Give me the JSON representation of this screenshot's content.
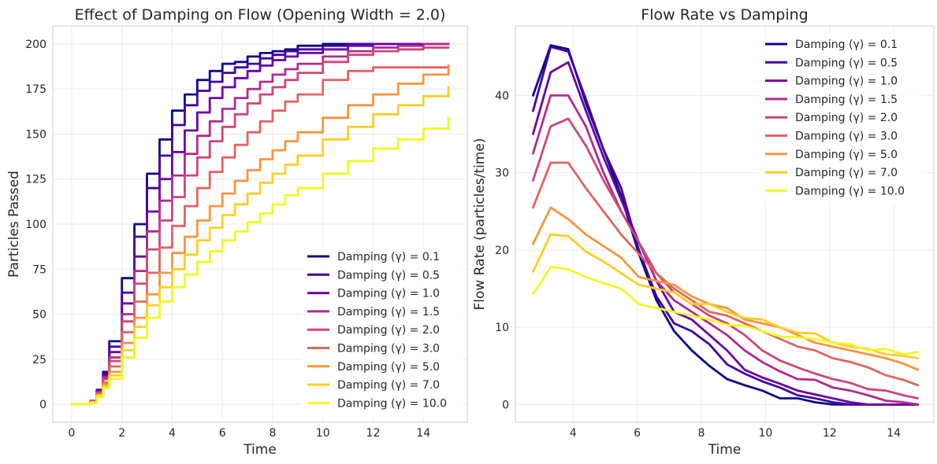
{
  "colors": {
    "background": "#ffffff",
    "spine": "#cccccc",
    "grid": "#ebebeb",
    "palette": "plasma",
    "series_colors": [
      "#0d0887",
      "#41049d",
      "#6a00a8",
      "#b12a90",
      "#cc4778",
      "#e16462",
      "#f89540",
      "#fcce25",
      "#f0f921"
    ]
  },
  "chart_data": [
    {
      "type": "line",
      "title": "Effect of Damping on Flow (Opening Width = 2.0)",
      "xlabel": "Time",
      "ylabel": "Particles Passed",
      "xlim": [
        -0.75,
        15.75
      ],
      "ylim": [
        -10,
        210
      ],
      "xticks": [
        0,
        2,
        4,
        6,
        8,
        10,
        12,
        14
      ],
      "yticks": [
        0,
        25,
        50,
        75,
        100,
        125,
        150,
        175,
        200
      ],
      "grid": true,
      "legend_position": "lower right",
      "series": [
        {
          "name": "Damping (γ) = 0.1",
          "x": [
            0,
            0.5,
            0.75,
            1,
            1.25,
            1.5,
            2,
            2.5,
            3,
            3.5,
            4,
            4.5,
            5,
            5.5,
            6,
            6.5,
            7,
            7.5,
            8,
            8.5,
            9,
            10,
            11,
            12,
            13,
            14,
            15
          ],
          "y": [
            0,
            0,
            2,
            8,
            18,
            35,
            70,
            100,
            128,
            147,
            163,
            172,
            180,
            185,
            189,
            190,
            193,
            195,
            196,
            197,
            199,
            200,
            200,
            200,
            200,
            200,
            200
          ]
        },
        {
          "name": "Damping (γ) = 0.5",
          "x": [
            0,
            0.5,
            0.75,
            1,
            1.25,
            1.5,
            2,
            2.5,
            3,
            3.5,
            4,
            4.5,
            5,
            5.5,
            6,
            6.5,
            7,
            7.5,
            8,
            8.5,
            9,
            10,
            11,
            12,
            13,
            14,
            15
          ],
          "y": [
            0,
            0,
            2,
            8,
            17,
            32,
            62,
            93,
            120,
            138,
            155,
            166,
            174,
            179,
            184,
            187,
            189,
            192,
            194,
            196,
            197,
            199,
            200,
            200,
            200,
            200,
            200
          ]
        },
        {
          "name": "Damping (γ) = 1.0",
          "x": [
            0,
            0.5,
            0.75,
            1,
            1.25,
            1.5,
            2,
            2.5,
            3,
            3.5,
            4,
            4.5,
            5,
            5.5,
            6,
            6.5,
            7,
            7.5,
            8,
            8.5,
            9,
            10,
            11,
            12,
            13,
            14,
            15
          ],
          "y": [
            0,
            0,
            2,
            7,
            16,
            29,
            56,
            82,
            107,
            125,
            140,
            152,
            162,
            170,
            176,
            181,
            185,
            188,
            191,
            193,
            195,
            197,
            199,
            200,
            200,
            200,
            200
          ]
        },
        {
          "name": "Damping (γ) = 1.5",
          "x": [
            0,
            0.5,
            0.75,
            1,
            1.25,
            1.5,
            2,
            2.5,
            3,
            3.5,
            4,
            4.5,
            5,
            5.5,
            6,
            6.5,
            7,
            7.5,
            8,
            8.5,
            9,
            10,
            11,
            12,
            13,
            14,
            15
          ],
          "y": [
            0,
            0,
            2,
            7,
            15,
            26,
            50,
            74,
            96,
            113,
            127,
            139,
            149,
            157,
            164,
            170,
            175,
            179,
            183,
            186,
            189,
            193,
            196,
            198,
            199,
            200,
            200
          ]
        },
        {
          "name": "Damping (γ) = 2.0",
          "x": [
            0,
            0.5,
            0.75,
            1,
            1.25,
            1.5,
            2,
            2.5,
            3,
            3.5,
            4,
            4.5,
            5,
            5.5,
            6,
            6.5,
            7,
            7.5,
            8,
            8.5,
            9,
            10,
            11,
            12,
            13,
            14,
            15
          ],
          "y": [
            0,
            0,
            2,
            6,
            14,
            24,
            46,
            67,
            86,
            102,
            115,
            127,
            137,
            146,
            154,
            161,
            167,
            172,
            176,
            180,
            184,
            190,
            194,
            196,
            197,
            198,
            198
          ]
        },
        {
          "name": "Damping (γ) = 3.0",
          "x": [
            0,
            0.5,
            0.75,
            1,
            1.25,
            1.5,
            2,
            2.5,
            3,
            3.5,
            4,
            4.5,
            5,
            5.5,
            6,
            6.5,
            7,
            7.5,
            8,
            8.5,
            9,
            10,
            11,
            12,
            13,
            14,
            15
          ],
          "y": [
            0,
            0,
            2,
            6,
            12,
            21,
            40,
            57,
            73,
            87,
            99,
            110,
            120,
            129,
            137,
            144,
            151,
            157,
            163,
            168,
            172,
            180,
            185,
            187,
            187,
            187,
            188
          ]
        },
        {
          "name": "Damping (γ) = 5.0",
          "x": [
            0,
            0.5,
            0.75,
            1,
            1.25,
            1.5,
            2,
            2.5,
            3,
            3.5,
            4,
            4.5,
            5,
            5.5,
            6,
            6.5,
            7,
            7.5,
            8,
            8.5,
            9,
            10,
            11,
            12,
            13,
            14,
            15
          ],
          "y": [
            0,
            0,
            1,
            5,
            11,
            18,
            34,
            48,
            61,
            73,
            84,
            93,
            102,
            110,
            117,
            124,
            130,
            136,
            141,
            146,
            151,
            159,
            166,
            172,
            178,
            183,
            188
          ]
        },
        {
          "name": "Damping (γ) = 7.0",
          "x": [
            0,
            0.5,
            0.75,
            1,
            1.25,
            1.5,
            2,
            2.5,
            3,
            3.5,
            4,
            4.5,
            5,
            5.5,
            6,
            6.5,
            7,
            7.5,
            8,
            8.5,
            9,
            10,
            11,
            12,
            13,
            14,
            15
          ],
          "y": [
            0,
            0,
            1,
            5,
            10,
            16,
            30,
            43,
            55,
            65,
            75,
            83,
            91,
            98,
            105,
            111,
            117,
            123,
            128,
            133,
            138,
            147,
            154,
            161,
            166,
            171,
            176
          ]
        },
        {
          "name": "Damping (γ) = 10.0",
          "x": [
            0,
            0.5,
            0.75,
            1,
            1.25,
            1.5,
            2,
            2.5,
            3,
            3.5,
            4,
            4.5,
            5,
            5.5,
            6,
            6.5,
            7,
            7.5,
            8,
            8.5,
            9,
            10,
            11,
            12,
            13,
            14,
            15
          ],
          "y": [
            0,
            0,
            1,
            4,
            9,
            14,
            26,
            37,
            48,
            57,
            65,
            72,
            79,
            85,
            91,
            96,
            101,
            106,
            111,
            116,
            120,
            128,
            135,
            142,
            147,
            153,
            159
          ]
        }
      ]
    },
    {
      "type": "line",
      "title": "Flow Rate vs Damping",
      "xlabel": "Time",
      "ylabel": "Flow Rate (particles/time)",
      "xlim": [
        2.2,
        15.25
      ],
      "ylim": [
        -2.3,
        49
      ],
      "xticks": [
        4,
        6,
        8,
        10,
        12,
        14
      ],
      "yticks": [
        0,
        10,
        20,
        30,
        40
      ],
      "grid": true,
      "legend_position": "upper right",
      "series": [
        {
          "name": "Damping (γ) = 0.1",
          "x": [
            2.75,
            3.3,
            3.85,
            4.4,
            4.95,
            5.5,
            6.05,
            6.6,
            7.15,
            7.7,
            8.25,
            8.8,
            9.35,
            9.9,
            10.45,
            11.0,
            11.55,
            12.1,
            12.65,
            13.2,
            13.75,
            14.3,
            14.75
          ],
          "y": [
            40,
            46.5,
            46,
            39,
            33,
            27,
            19.5,
            13.5,
            9.5,
            7,
            5,
            3.3,
            2.5,
            1.8,
            0.8,
            0.8,
            0.3,
            0,
            0,
            0,
            0,
            0,
            0
          ]
        },
        {
          "name": "Damping (γ) = 0.5",
          "x": [
            2.75,
            3.3,
            3.85,
            4.4,
            4.95,
            5.5,
            6.05,
            6.6,
            7.15,
            7.7,
            8.25,
            8.8,
            9.35,
            9.9,
            10.45,
            11.0,
            11.55,
            12.1,
            12.65,
            13.2,
            13.75,
            14.3,
            14.75
          ],
          "y": [
            38,
            46.3,
            45.7,
            39.5,
            33,
            28,
            20,
            14,
            10.5,
            9.5,
            7.8,
            5.2,
            4,
            3,
            2.2,
            1.2,
            0.8,
            0.3,
            0,
            0,
            0,
            0,
            0
          ]
        },
        {
          "name": "Damping (γ) = 1.0",
          "x": [
            2.75,
            3.3,
            3.85,
            4.4,
            4.95,
            5.5,
            6.05,
            6.6,
            7.15,
            7.7,
            8.25,
            8.8,
            9.35,
            9.9,
            10.45,
            11.0,
            11.55,
            12.1,
            12.65,
            13.2,
            13.75,
            14.3,
            14.75
          ],
          "y": [
            35,
            43,
            44.3,
            38,
            32,
            26.5,
            21,
            16,
            12,
            11,
            9,
            7,
            4.5,
            3.5,
            2.7,
            1.8,
            1.3,
            0.8,
            0.3,
            0,
            0,
            0,
            0
          ]
        },
        {
          "name": "Damping (γ) = 1.5",
          "x": [
            2.75,
            3.3,
            3.85,
            4.4,
            4.95,
            5.5,
            6.05,
            6.6,
            7.15,
            7.7,
            8.25,
            8.8,
            9.35,
            9.9,
            10.45,
            11.0,
            11.55,
            12.1,
            12.65,
            13.2,
            13.75,
            14.3,
            14.75
          ],
          "y": [
            32.5,
            40,
            40,
            36,
            30,
            25,
            21,
            16,
            13.5,
            12,
            10.5,
            9,
            7,
            5.5,
            4.3,
            3.3,
            3.2,
            2.2,
            1.8,
            1.2,
            0.5,
            0.3,
            0
          ]
        },
        {
          "name": "Damping (γ) = 2.0",
          "x": [
            2.75,
            3.3,
            3.85,
            4.4,
            4.95,
            5.5,
            6.05,
            6.6,
            7.15,
            7.7,
            8.25,
            8.8,
            9.35,
            9.9,
            10.45,
            11.0,
            11.55,
            12.1,
            12.65,
            13.2,
            13.75,
            14.3,
            14.75
          ],
          "y": [
            29,
            36,
            37,
            33.5,
            29,
            25,
            21,
            17,
            14.5,
            13,
            11.5,
            10.5,
            9,
            7,
            5.7,
            4.8,
            4,
            3.3,
            2.8,
            2,
            1.8,
            1.2,
            0.8
          ]
        },
        {
          "name": "Damping (γ) = 3.0",
          "x": [
            2.75,
            3.3,
            3.85,
            4.4,
            4.95,
            5.5,
            6.05,
            6.6,
            7.15,
            7.7,
            8.25,
            8.8,
            9.35,
            9.9,
            10.45,
            11.0,
            11.55,
            12.1,
            12.65,
            13.2,
            13.75,
            14.3,
            14.75
          ],
          "y": [
            25.5,
            31.3,
            31.3,
            28,
            25,
            22,
            19.5,
            17,
            15,
            13.5,
            12,
            11.5,
            10.5,
            9.5,
            8.5,
            7.5,
            7,
            6,
            5.5,
            4.8,
            3.8,
            3.2,
            2.5
          ]
        },
        {
          "name": "Damping (γ) = 5.0",
          "x": [
            2.75,
            3.3,
            3.85,
            4.4,
            4.95,
            5.5,
            6.05,
            6.6,
            7.15,
            7.7,
            8.25,
            8.8,
            9.35,
            9.9,
            10.45,
            11.0,
            11.55,
            12.1,
            12.65,
            13.2,
            13.75,
            14.3,
            14.75
          ],
          "y": [
            20.8,
            25.5,
            24,
            22,
            20.5,
            19,
            16.5,
            16,
            15.5,
            14,
            13,
            12.5,
            11,
            10.5,
            10,
            9,
            8,
            7.5,
            7,
            6.5,
            6,
            5.3,
            4.5
          ]
        },
        {
          "name": "Damping (γ) = 7.0",
          "x": [
            2.75,
            3.3,
            3.85,
            4.4,
            4.95,
            5.5,
            6.05,
            6.6,
            7.15,
            7.7,
            8.25,
            8.8,
            9.35,
            9.9,
            10.45,
            11.0,
            11.55,
            12.1,
            12.65,
            13.2,
            13.75,
            14.3,
            14.75
          ],
          "y": [
            17.2,
            22,
            21.8,
            19.8,
            18.5,
            17,
            15.5,
            15,
            14.5,
            13,
            13,
            12,
            11.2,
            11,
            10,
            9.3,
            9.2,
            8,
            7.5,
            7.2,
            6.5,
            6.3,
            6
          ]
        },
        {
          "name": "Damping (γ) = 10.0",
          "x": [
            2.75,
            3.3,
            3.85,
            4.4,
            4.95,
            5.5,
            6.05,
            6.6,
            7.15,
            7.7,
            8.25,
            8.8,
            9.35,
            9.9,
            10.45,
            11.0,
            11.55,
            12.1,
            12.65,
            13.2,
            13.75,
            14.3,
            14.75
          ],
          "y": [
            14.3,
            17.8,
            17.5,
            16.5,
            15.7,
            15,
            13,
            12.5,
            12,
            11.5,
            11,
            10.3,
            10.2,
            9.5,
            8.8,
            8.7,
            8.5,
            8,
            7.8,
            7,
            7.2,
            6.5,
            6.8
          ]
        }
      ]
    }
  ]
}
